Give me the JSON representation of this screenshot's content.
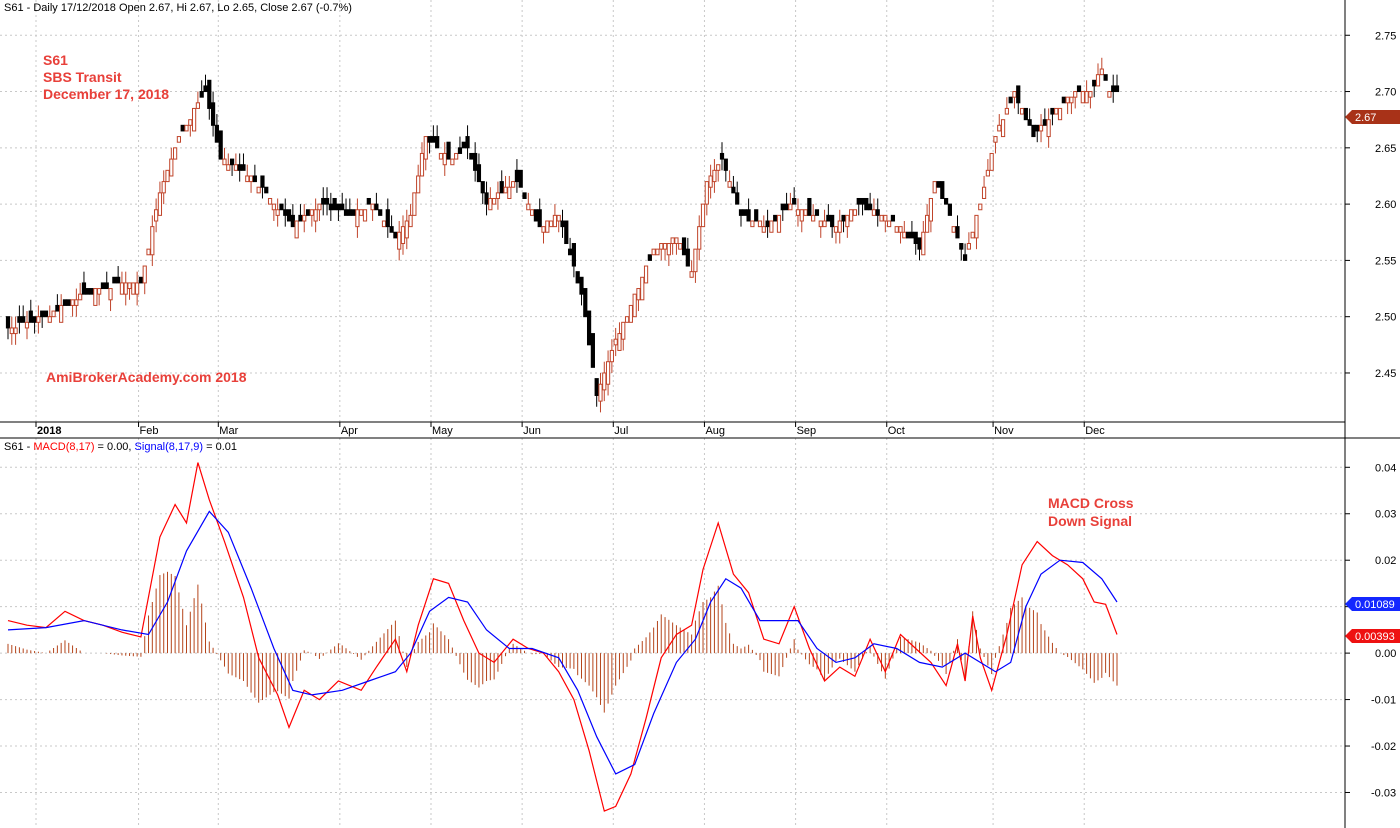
{
  "header": {
    "price_title": "S61 - Daily 17/12/2018 Open 2.67, Hi 2.67, Lo 2.65, Close 2.67 (-0.7%)",
    "macd_title_prefix": "S61 - ",
    "macd_title_macd": "MACD(8,17)",
    "macd_title_macd_val": " = 0.00, ",
    "macd_title_signal": "Signal(8,17,9)",
    "macd_title_signal_val": " = 0.01"
  },
  "annotations": {
    "symbol": "S61",
    "company": "SBS Transit",
    "date": "December 17, 2018",
    "watermark": "AmiBrokerAcademy.com  2018",
    "macd_note_line1": "MACD Cross",
    "macd_note_line2": "Down Signal"
  },
  "badges": {
    "last_price": "2.67",
    "signal_value": "0.01089",
    "macd_value": "0.00393"
  },
  "colors": {
    "up_candle": "#c0442a",
    "down_candle": "#000000",
    "macd_line": "#ff0000",
    "signal_line": "#0000ff",
    "histogram": "#b5451b",
    "price_badge": "#a83218",
    "signal_badge": "#1428ff",
    "macd_badge": "#ee1111",
    "annotation": "#e8403a"
  },
  "chart_data": [
    {
      "type": "candlestick",
      "title": "S61 - Daily 17/12/2018 Open 2.67, Hi 2.67, Lo 2.65, Close 2.67 (-0.7%)",
      "ylim": [
        2.41,
        2.76
      ],
      "y_ticks": [
        "2.45",
        "2.50",
        "2.55",
        "2.60",
        "2.65",
        "2.70",
        "2.75"
      ],
      "x_ticks": [
        "2018",
        "Feb",
        "Mar",
        "Apr",
        "May",
        "Jun",
        "Jul",
        "Aug",
        "Sep",
        "Oct",
        "Nov",
        "Dec"
      ],
      "grid": true,
      "close_path": [
        {
          "d": 0,
          "c": 2.49
        },
        {
          "d": 10,
          "c": 2.5
        },
        {
          "d": 20,
          "c": 2.52
        },
        {
          "d": 30,
          "c": 2.53
        },
        {
          "d": 35,
          "c": 2.53
        },
        {
          "d": 40,
          "c": 2.61
        },
        {
          "d": 45,
          "c": 2.66
        },
        {
          "d": 52,
          "c": 2.7
        },
        {
          "d": 56,
          "c": 2.64
        },
        {
          "d": 62,
          "c": 2.63
        },
        {
          "d": 68,
          "c": 2.61
        },
        {
          "d": 75,
          "c": 2.58
        },
        {
          "d": 82,
          "c": 2.6
        },
        {
          "d": 90,
          "c": 2.59
        },
        {
          "d": 96,
          "c": 2.6
        },
        {
          "d": 102,
          "c": 2.57
        },
        {
          "d": 106,
          "c": 2.59
        },
        {
          "d": 110,
          "c": 2.66
        },
        {
          "d": 116,
          "c": 2.64
        },
        {
          "d": 121,
          "c": 2.65
        },
        {
          "d": 126,
          "c": 2.6
        },
        {
          "d": 134,
          "c": 2.62
        },
        {
          "d": 140,
          "c": 2.58
        },
        {
          "d": 145,
          "c": 2.59
        },
        {
          "d": 151,
          "c": 2.52
        },
        {
          "d": 155,
          "c": 2.43
        },
        {
          "d": 159,
          "c": 2.47
        },
        {
          "d": 164,
          "c": 2.51
        },
        {
          "d": 170,
          "c": 2.56
        },
        {
          "d": 176,
          "c": 2.57
        },
        {
          "d": 180,
          "c": 2.54
        },
        {
          "d": 184,
          "c": 2.62
        },
        {
          "d": 188,
          "c": 2.64
        },
        {
          "d": 193,
          "c": 2.59
        },
        {
          "d": 200,
          "c": 2.58
        },
        {
          "d": 206,
          "c": 2.6
        },
        {
          "d": 212,
          "c": 2.59
        },
        {
          "d": 218,
          "c": 2.58
        },
        {
          "d": 224,
          "c": 2.6
        },
        {
          "d": 230,
          "c": 2.59
        },
        {
          "d": 235,
          "c": 2.58
        },
        {
          "d": 240,
          "c": 2.56
        },
        {
          "d": 244,
          "c": 2.62
        },
        {
          "d": 248,
          "c": 2.59
        },
        {
          "d": 252,
          "c": 2.55
        },
        {
          "d": 256,
          "c": 2.6
        },
        {
          "d": 260,
          "c": 2.66
        },
        {
          "d": 265,
          "c": 2.7
        },
        {
          "d": 270,
          "c": 2.66
        },
        {
          "d": 275,
          "c": 2.68
        },
        {
          "d": 281,
          "c": 2.7
        },
        {
          "d": 285,
          "c": 2.7
        },
        {
          "d": 288,
          "c": 2.72
        },
        {
          "d": 290,
          "c": 2.7
        }
      ],
      "last_price": "2.67"
    },
    {
      "type": "line",
      "title": "S61 - MACD(8,17) = 0.00, Signal(8,17,9) = 0.01",
      "ylim": [
        -0.037,
        0.042
      ],
      "y_ticks": [
        "-0.03",
        "-0.02",
        "-0.01",
        "0.00",
        "0.01",
        "0.02",
        "0.03",
        "0.04"
      ],
      "x_ticks": [
        "2018",
        "Feb",
        "Mar",
        "Apr",
        "May",
        "Jun",
        "Jul",
        "Aug",
        "Sep",
        "Oct",
        "Nov",
        "Dec"
      ],
      "grid": true,
      "series": [
        {
          "name": "MACD(8,17)",
          "points": [
            [
              0,
              0.007
            ],
            [
              5,
              0.006
            ],
            [
              10,
              0.0055
            ],
            [
              15,
              0.009
            ],
            [
              20,
              0.007
            ],
            [
              25,
              0.006
            ],
            [
              30,
              0.0045
            ],
            [
              35,
              0.0035
            ],
            [
              40,
              0.025
            ],
            [
              44,
              0.032
            ],
            [
              47,
              0.028
            ],
            [
              50,
              0.041
            ],
            [
              53,
              0.033
            ],
            [
              57,
              0.024
            ],
            [
              62,
              0.012
            ],
            [
              66,
              -0.001
            ],
            [
              71,
              -0.009
            ],
            [
              74,
              -0.016
            ],
            [
              78,
              -0.008
            ],
            [
              82,
              -0.01
            ],
            [
              87,
              -0.006
            ],
            [
              93,
              -0.008
            ],
            [
              97,
              -0.003
            ],
            [
              102,
              0.003
            ],
            [
              105,
              -0.004
            ],
            [
              108,
              0.006
            ],
            [
              112,
              0.016
            ],
            [
              116,
              0.015
            ],
            [
              120,
              0.007
            ],
            [
              124,
              0.0
            ],
            [
              128,
              -0.002
            ],
            [
              133,
              0.003
            ],
            [
              137,
              0.001
            ],
            [
              141,
              0.0
            ],
            [
              145,
              -0.004
            ],
            [
              149,
              -0.01
            ],
            [
              153,
              -0.021
            ],
            [
              157,
              -0.034
            ],
            [
              160,
              -0.033
            ],
            [
              164,
              -0.026
            ],
            [
              168,
              -0.014
            ],
            [
              172,
              -0.001
            ],
            [
              176,
              0.004
            ],
            [
              180,
              0.006
            ],
            [
              183,
              0.018
            ],
            [
              187,
              0.028
            ],
            [
              191,
              0.017
            ],
            [
              195,
              0.013
            ],
            [
              199,
              0.003
            ],
            [
              203,
              0.002
            ],
            [
              207,
              0.01
            ],
            [
              211,
              0.001
            ],
            [
              215,
              -0.006
            ],
            [
              219,
              -0.003
            ],
            [
              223,
              -0.005
            ],
            [
              227,
              0.003
            ],
            [
              231,
              -0.004
            ],
            [
              235,
              0.004
            ],
            [
              239,
              0.001
            ],
            [
              243,
              -0.002
            ],
            [
              247,
              -0.007
            ],
            [
              250,
              0.002
            ],
            [
              252,
              -0.006
            ],
            [
              254,
              0.008
            ],
            [
              256,
              -0.001
            ],
            [
              259,
              -0.008
            ],
            [
              263,
              0.004
            ],
            [
              267,
              0.019
            ],
            [
              271,
              0.024
            ],
            [
              275,
              0.021
            ],
            [
              279,
              0.019
            ],
            [
              283,
              0.016
            ],
            [
              286,
              0.011
            ],
            [
              289,
              0.0105
            ],
            [
              292,
              0.004
            ]
          ]
        },
        {
          "name": "Signal(8,17,9)",
          "points": [
            [
              0,
              0.005
            ],
            [
              10,
              0.0055
            ],
            [
              20,
              0.007
            ],
            [
              30,
              0.005
            ],
            [
              37,
              0.004
            ],
            [
              42,
              0.011
            ],
            [
              47,
              0.022
            ],
            [
              53,
              0.0305
            ],
            [
              58,
              0.026
            ],
            [
              64,
              0.014
            ],
            [
              70,
              0.001
            ],
            [
              75,
              -0.008
            ],
            [
              80,
              -0.009
            ],
            [
              88,
              -0.008
            ],
            [
              95,
              -0.006
            ],
            [
              102,
              -0.004
            ],
            [
              106,
              0.0
            ],
            [
              111,
              0.009
            ],
            [
              116,
              0.012
            ],
            [
              121,
              0.011
            ],
            [
              126,
              0.005
            ],
            [
              132,
              0.001
            ],
            [
              138,
              0.001
            ],
            [
              145,
              -0.001
            ],
            [
              150,
              -0.008
            ],
            [
              155,
              -0.018
            ],
            [
              160,
              -0.026
            ],
            [
              165,
              -0.024
            ],
            [
              170,
              -0.013
            ],
            [
              176,
              -0.002
            ],
            [
              181,
              0.003
            ],
            [
              185,
              0.011
            ],
            [
              189,
              0.016
            ],
            [
              193,
              0.014
            ],
            [
              198,
              0.007
            ],
            [
              203,
              0.007
            ],
            [
              208,
              0.007
            ],
            [
              213,
              0.001
            ],
            [
              218,
              -0.002
            ],
            [
              223,
              -0.001
            ],
            [
              228,
              0.002
            ],
            [
              234,
              0.001
            ],
            [
              240,
              -0.002
            ],
            [
              246,
              -0.003
            ],
            [
              252,
              0.0
            ],
            [
              256,
              -0.002
            ],
            [
              260,
              -0.004
            ],
            [
              264,
              -0.002
            ],
            [
              268,
              0.01
            ],
            [
              272,
              0.017
            ],
            [
              277,
              0.02
            ],
            [
              283,
              0.0195
            ],
            [
              288,
              0.016
            ],
            [
              292,
              0.011
            ]
          ]
        }
      ],
      "macd_value": "0.00393",
      "signal_value": "0.01089"
    }
  ]
}
